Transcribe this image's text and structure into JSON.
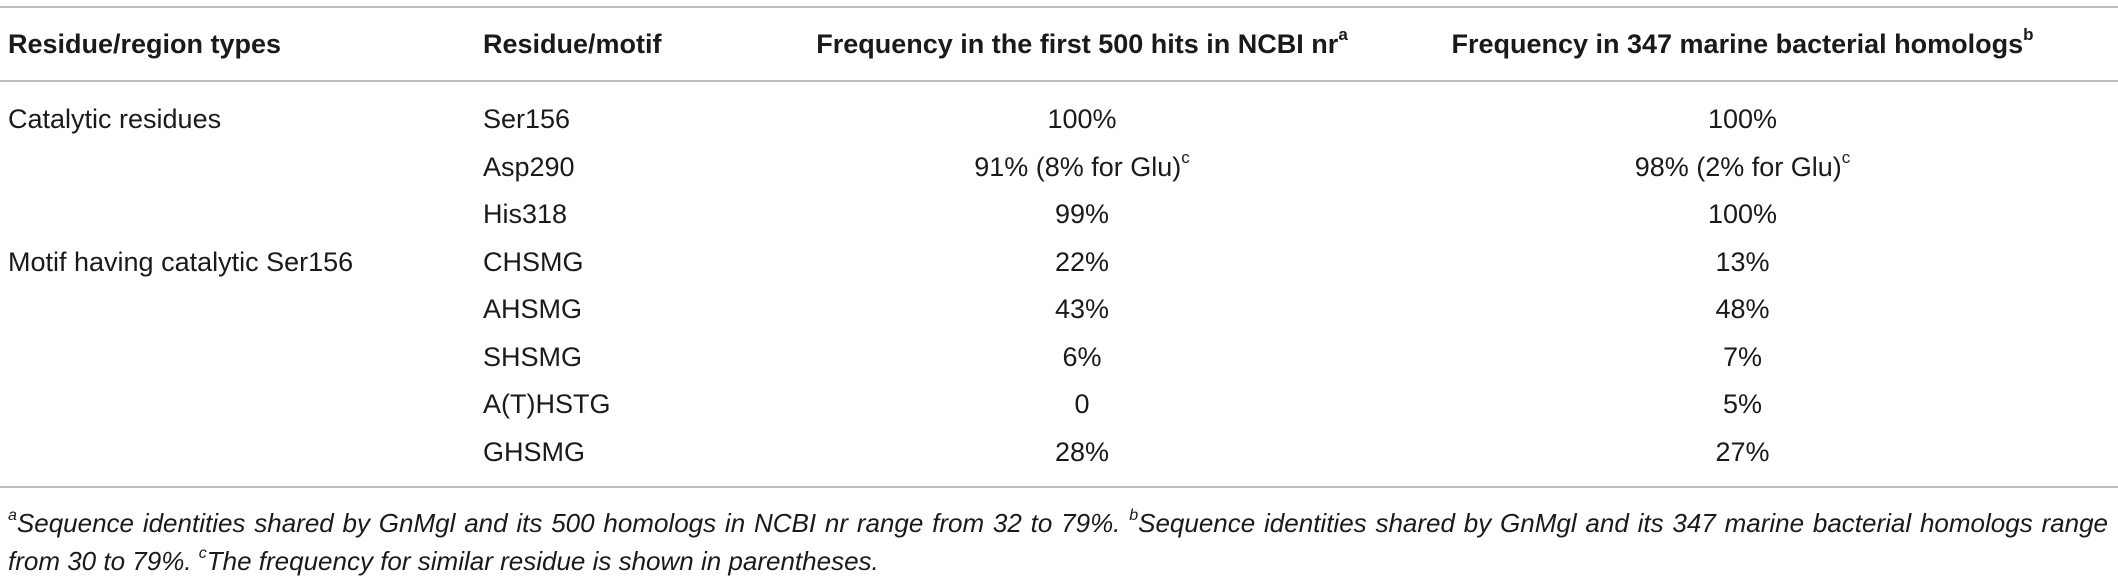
{
  "table": {
    "headers": [
      {
        "text": "Residue/region types",
        "sup": ""
      },
      {
        "text": "Residue/motif",
        "sup": ""
      },
      {
        "text": "Frequency in the first 500 hits in NCBI nr",
        "sup": "a"
      },
      {
        "text": "Frequency in 347 marine bacterial homologs",
        "sup": "b"
      }
    ],
    "rows": [
      {
        "type": "Catalytic residues",
        "motif": "Ser156",
        "freq_nr": "100%",
        "freq_nr_sup": "",
        "freq_marine": "100%",
        "freq_marine_sup": ""
      },
      {
        "type": "",
        "motif": "Asp290",
        "freq_nr": "91% (8% for Glu)",
        "freq_nr_sup": "c",
        "freq_marine": "98% (2% for Glu)",
        "freq_marine_sup": "c"
      },
      {
        "type": "",
        "motif": "His318",
        "freq_nr": "99%",
        "freq_nr_sup": "",
        "freq_marine": "100%",
        "freq_marine_sup": ""
      },
      {
        "type": "Motif having catalytic Ser156",
        "motif": "CHSMG",
        "freq_nr": "22%",
        "freq_nr_sup": "",
        "freq_marine": "13%",
        "freq_marine_sup": ""
      },
      {
        "type": "",
        "motif": "AHSMG",
        "freq_nr": "43%",
        "freq_nr_sup": "",
        "freq_marine": "48%",
        "freq_marine_sup": ""
      },
      {
        "type": "",
        "motif": "SHSMG",
        "freq_nr": "6%",
        "freq_nr_sup": "",
        "freq_marine": "7%",
        "freq_marine_sup": ""
      },
      {
        "type": "",
        "motif": "A(T)HSTG",
        "freq_nr": "0",
        "freq_nr_sup": "",
        "freq_marine": "5%",
        "freq_marine_sup": ""
      },
      {
        "type": "",
        "motif": "GHSMG",
        "freq_nr": "28%",
        "freq_nr_sup": "",
        "freq_marine": "27%",
        "freq_marine_sup": ""
      }
    ]
  },
  "footnotes": {
    "a_mark": "a",
    "a_text": "Sequence identities shared by GnMgl and its 500 homologs in NCBI nr range from 32 to 79%. ",
    "b_mark": "b",
    "b_text": "Sequence identities shared by GnMgl and its 347 marine bacterial homologs range from 30 to 79%. ",
    "c_mark": "c",
    "c_text": "The frequency for similar residue is shown in parentheses."
  }
}
